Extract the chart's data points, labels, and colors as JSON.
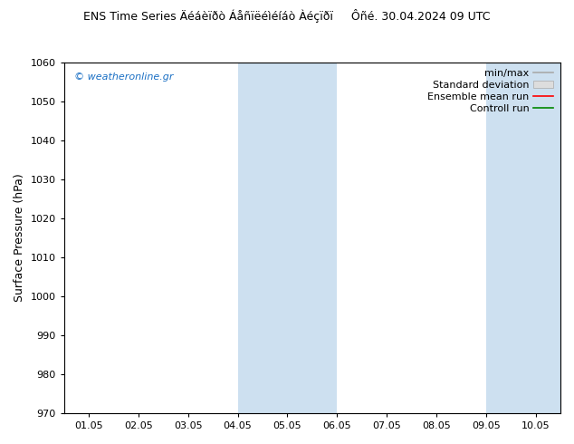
{
  "title": "ENS Time Series Äéáèïðò Áåñïëéìéíáò Àéçïðï     Ôñé. 30.04.2024 09 UTC",
  "ylabel": "Surface Pressure (hPa)",
  "ylim": [
    970,
    1060
  ],
  "yticks": [
    970,
    980,
    990,
    1000,
    1010,
    1020,
    1030,
    1040,
    1050,
    1060
  ],
  "xtick_labels": [
    "01.05",
    "02.05",
    "03.05",
    "04.05",
    "05.05",
    "06.05",
    "07.05",
    "08.05",
    "09.05",
    "10.05"
  ],
  "xlim": [
    0.5,
    10.5
  ],
  "x_positions": [
    1,
    2,
    3,
    4,
    5,
    6,
    7,
    8,
    9,
    10
  ],
  "shaded_bands": [
    {
      "x_start": 4.0,
      "x_end": 6.0
    },
    {
      "x_start": 9.0,
      "x_end": 10.5
    }
  ],
  "shade_color": "#cde0f0",
  "watermark": "© weatheronline.gr",
  "watermark_color": "#1a6fc4",
  "legend_entries": [
    {
      "label": "min/max",
      "type": "line",
      "color": "#aaaaaa"
    },
    {
      "label": "Standard deviation",
      "type": "box",
      "facecolor": "#dddddd",
      "edgecolor": "#aaaaaa"
    },
    {
      "label": "Ensemble mean run",
      "type": "line",
      "color": "#ff0000"
    },
    {
      "label": "Controll run",
      "type": "line",
      "color": "#008800"
    }
  ],
  "bg_color": "#ffffff",
  "title_fontsize": 9,
  "ylabel_fontsize": 9,
  "tick_fontsize": 8,
  "watermark_fontsize": 8,
  "legend_fontsize": 8
}
